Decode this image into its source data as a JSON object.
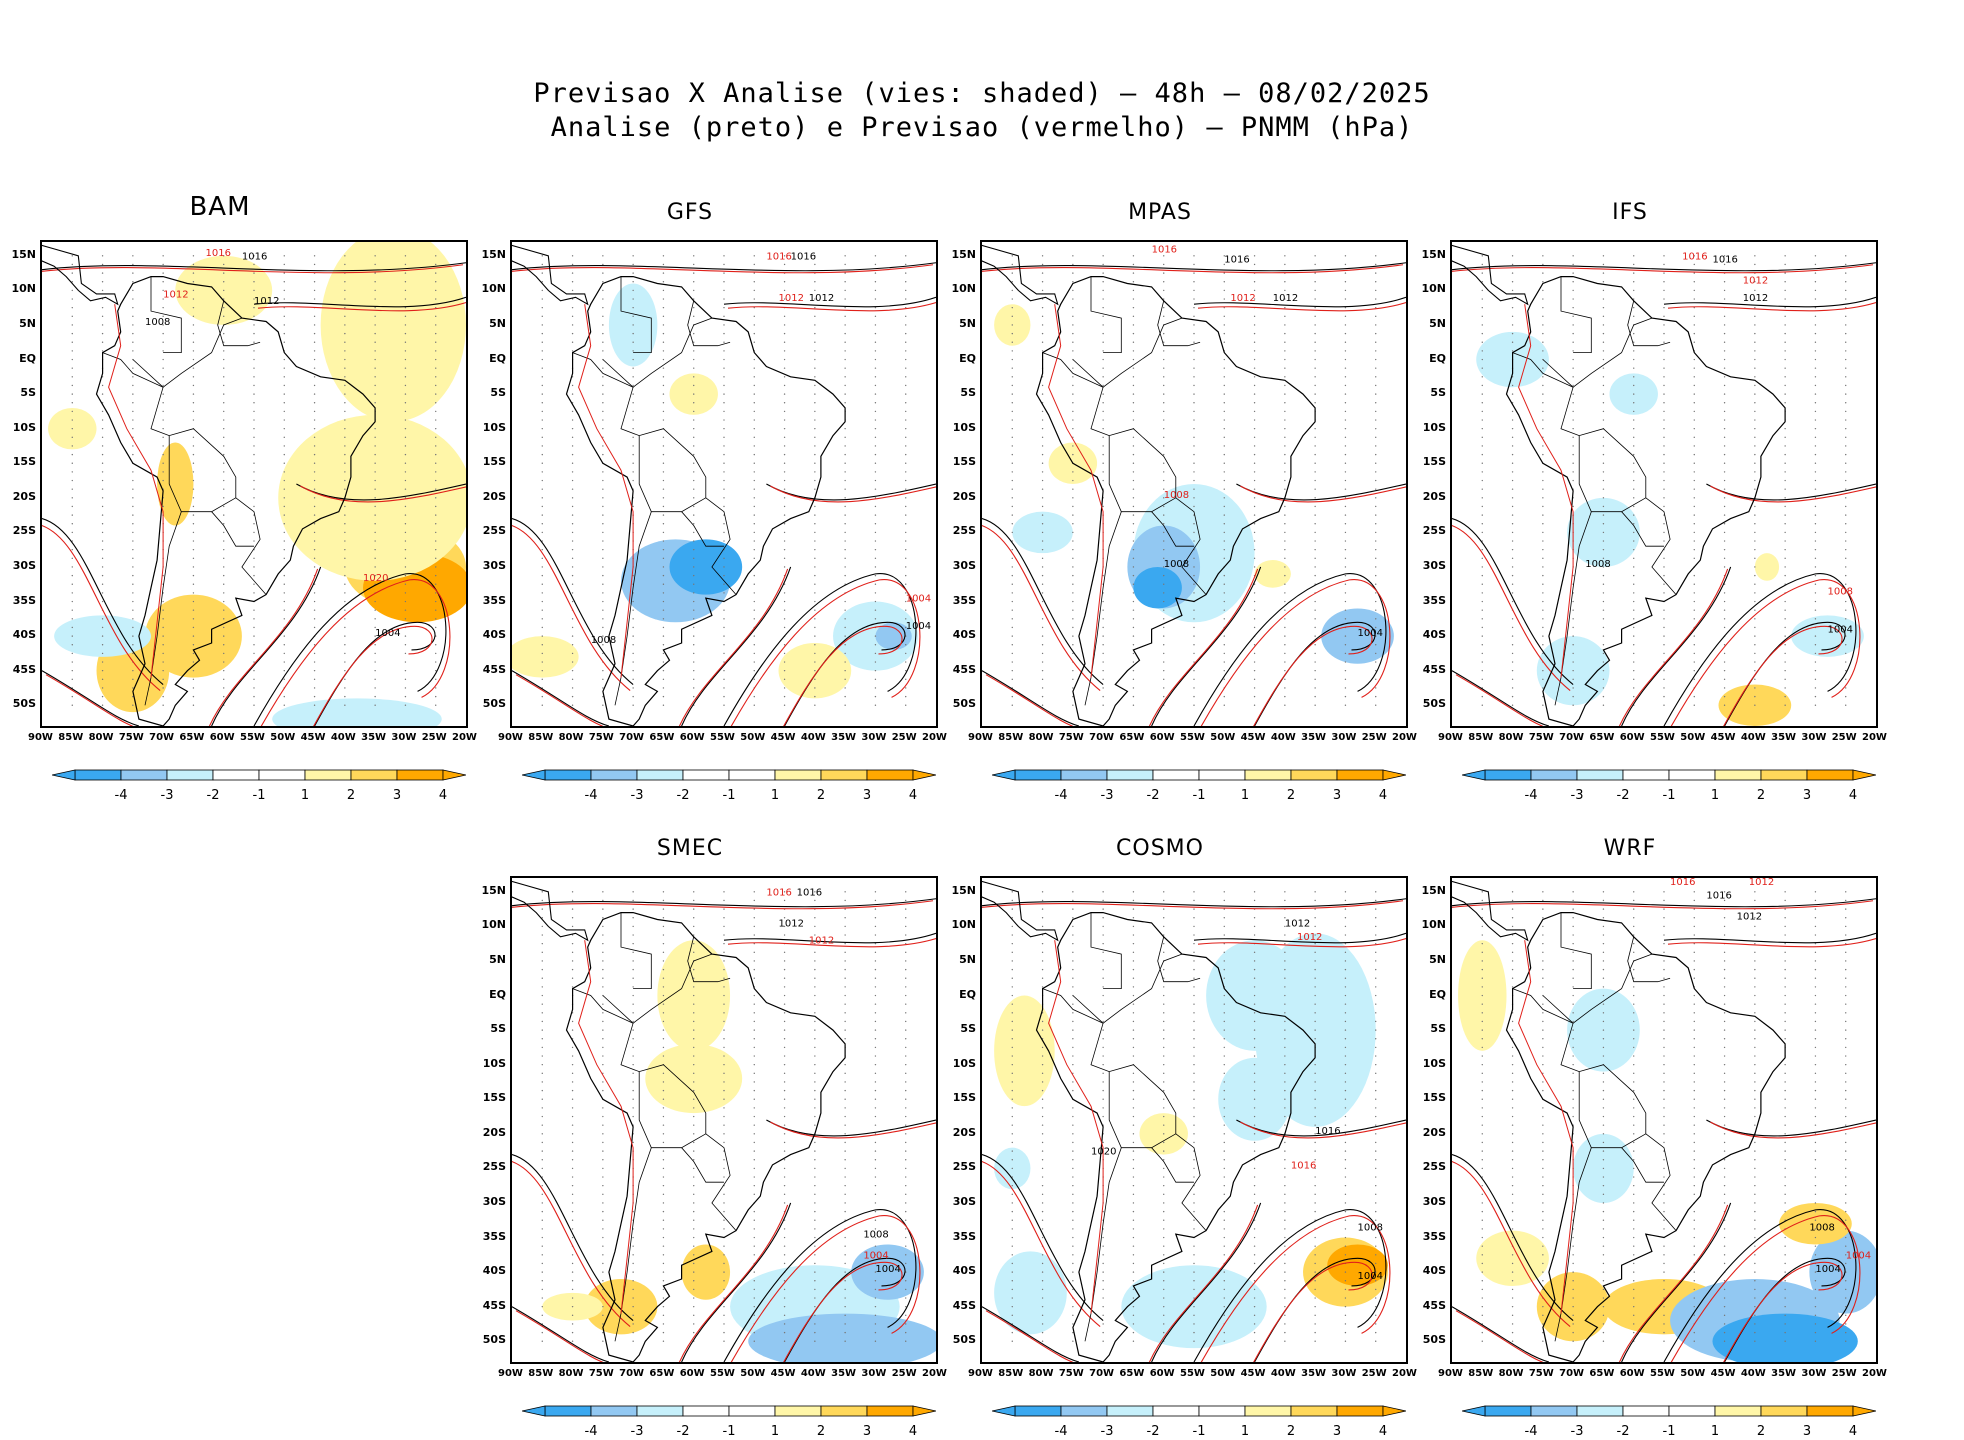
{
  "title": {
    "line1": "Previsao X Analise (vies: shaded) — 48h — 08/02/2025",
    "line2": "Analise (preto) e Previsao (vermelho) — PNMM (hPa)"
  },
  "colors": {
    "neg4": "#3aa8f0",
    "neg3": "#92c8f2",
    "neg2": "#c6f0fb",
    "neg1": "#ffffff",
    "pos1": "#ffffff",
    "pos2": "#fff6a8",
    "pos3": "#ffd85a",
    "pos4": "#ffa800",
    "analysis": "#000000",
    "forecast": "#e0201a"
  },
  "lat_labels": [
    "15N",
    "10N",
    "5N",
    "EQ",
    "5S",
    "10S",
    "15S",
    "20S",
    "25S",
    "30S",
    "35S",
    "40S",
    "45S",
    "50S"
  ],
  "lon_labels": [
    "90W",
    "85W",
    "80W",
    "75W",
    "70W",
    "65W",
    "60W",
    "55W",
    "50W",
    "45W",
    "40W",
    "35W",
    "30W",
    "25W",
    "20W"
  ],
  "colorbar_labels": [
    "-4",
    "-3",
    "-2",
    "-1",
    "1",
    "2",
    "3",
    "4"
  ],
  "panels": [
    {
      "name": "BAM",
      "contours": [
        {
          "t": "1016",
          "c": "r"
        },
        {
          "t": "1016",
          "c": "k"
        },
        {
          "t": "1012",
          "c": "r"
        },
        {
          "t": "1012",
          "c": "k"
        },
        {
          "t": "1008",
          "c": "k"
        },
        {
          "t": "1004",
          "c": "k"
        },
        {
          "t": "1020",
          "c": "r"
        }
      ]
    },
    {
      "name": "GFS",
      "contours": [
        {
          "t": "1016",
          "c": "r"
        },
        {
          "t": "1016",
          "c": "k"
        },
        {
          "t": "1012",
          "c": "r"
        },
        {
          "t": "1012",
          "c": "k"
        },
        {
          "t": "1008",
          "c": "k"
        },
        {
          "t": "1004",
          "c": "k"
        },
        {
          "t": "1004",
          "c": "r"
        }
      ]
    },
    {
      "name": "MPAS",
      "contours": [
        {
          "t": "1016",
          "c": "r"
        },
        {
          "t": "1016",
          "c": "k"
        },
        {
          "t": "1012",
          "c": "r"
        },
        {
          "t": "1012",
          "c": "k"
        },
        {
          "t": "1008",
          "c": "k"
        },
        {
          "t": "1004",
          "c": "k"
        },
        {
          "t": "1008",
          "c": "r"
        }
      ]
    },
    {
      "name": "IFS",
      "contours": [
        {
          "t": "1016",
          "c": "r"
        },
        {
          "t": "1016",
          "c": "k"
        },
        {
          "t": "1012",
          "c": "r"
        },
        {
          "t": "1012",
          "c": "k"
        },
        {
          "t": "1008",
          "c": "k"
        },
        {
          "t": "1004",
          "c": "k"
        },
        {
          "t": "1008",
          "c": "r"
        }
      ]
    },
    {
      "name": "SMEC",
      "contours": [
        {
          "t": "1016",
          "c": "r"
        },
        {
          "t": "1016",
          "c": "k"
        },
        {
          "t": "1012",
          "c": "r"
        },
        {
          "t": "1012",
          "c": "k"
        },
        {
          "t": "1008",
          "c": "k"
        },
        {
          "t": "1004",
          "c": "k"
        },
        {
          "t": "1004",
          "c": "r"
        }
      ]
    },
    {
      "name": "COSMO",
      "contours": [
        {
          "t": "1016",
          "c": "r"
        },
        {
          "t": "1016",
          "c": "k"
        },
        {
          "t": "1012",
          "c": "r"
        },
        {
          "t": "1012",
          "c": "k"
        },
        {
          "t": "1008",
          "c": "k"
        },
        {
          "t": "1004",
          "c": "k"
        },
        {
          "t": "1020",
          "c": "k"
        }
      ]
    },
    {
      "name": "WRF",
      "contours": [
        {
          "t": "1016",
          "c": "r"
        },
        {
          "t": "1016",
          "c": "k"
        },
        {
          "t": "1012",
          "c": "r"
        },
        {
          "t": "1012",
          "c": "k"
        },
        {
          "t": "1008",
          "c": "k"
        },
        {
          "t": "1004",
          "c": "k"
        },
        {
          "t": "1004",
          "c": "r"
        }
      ]
    }
  ]
}
